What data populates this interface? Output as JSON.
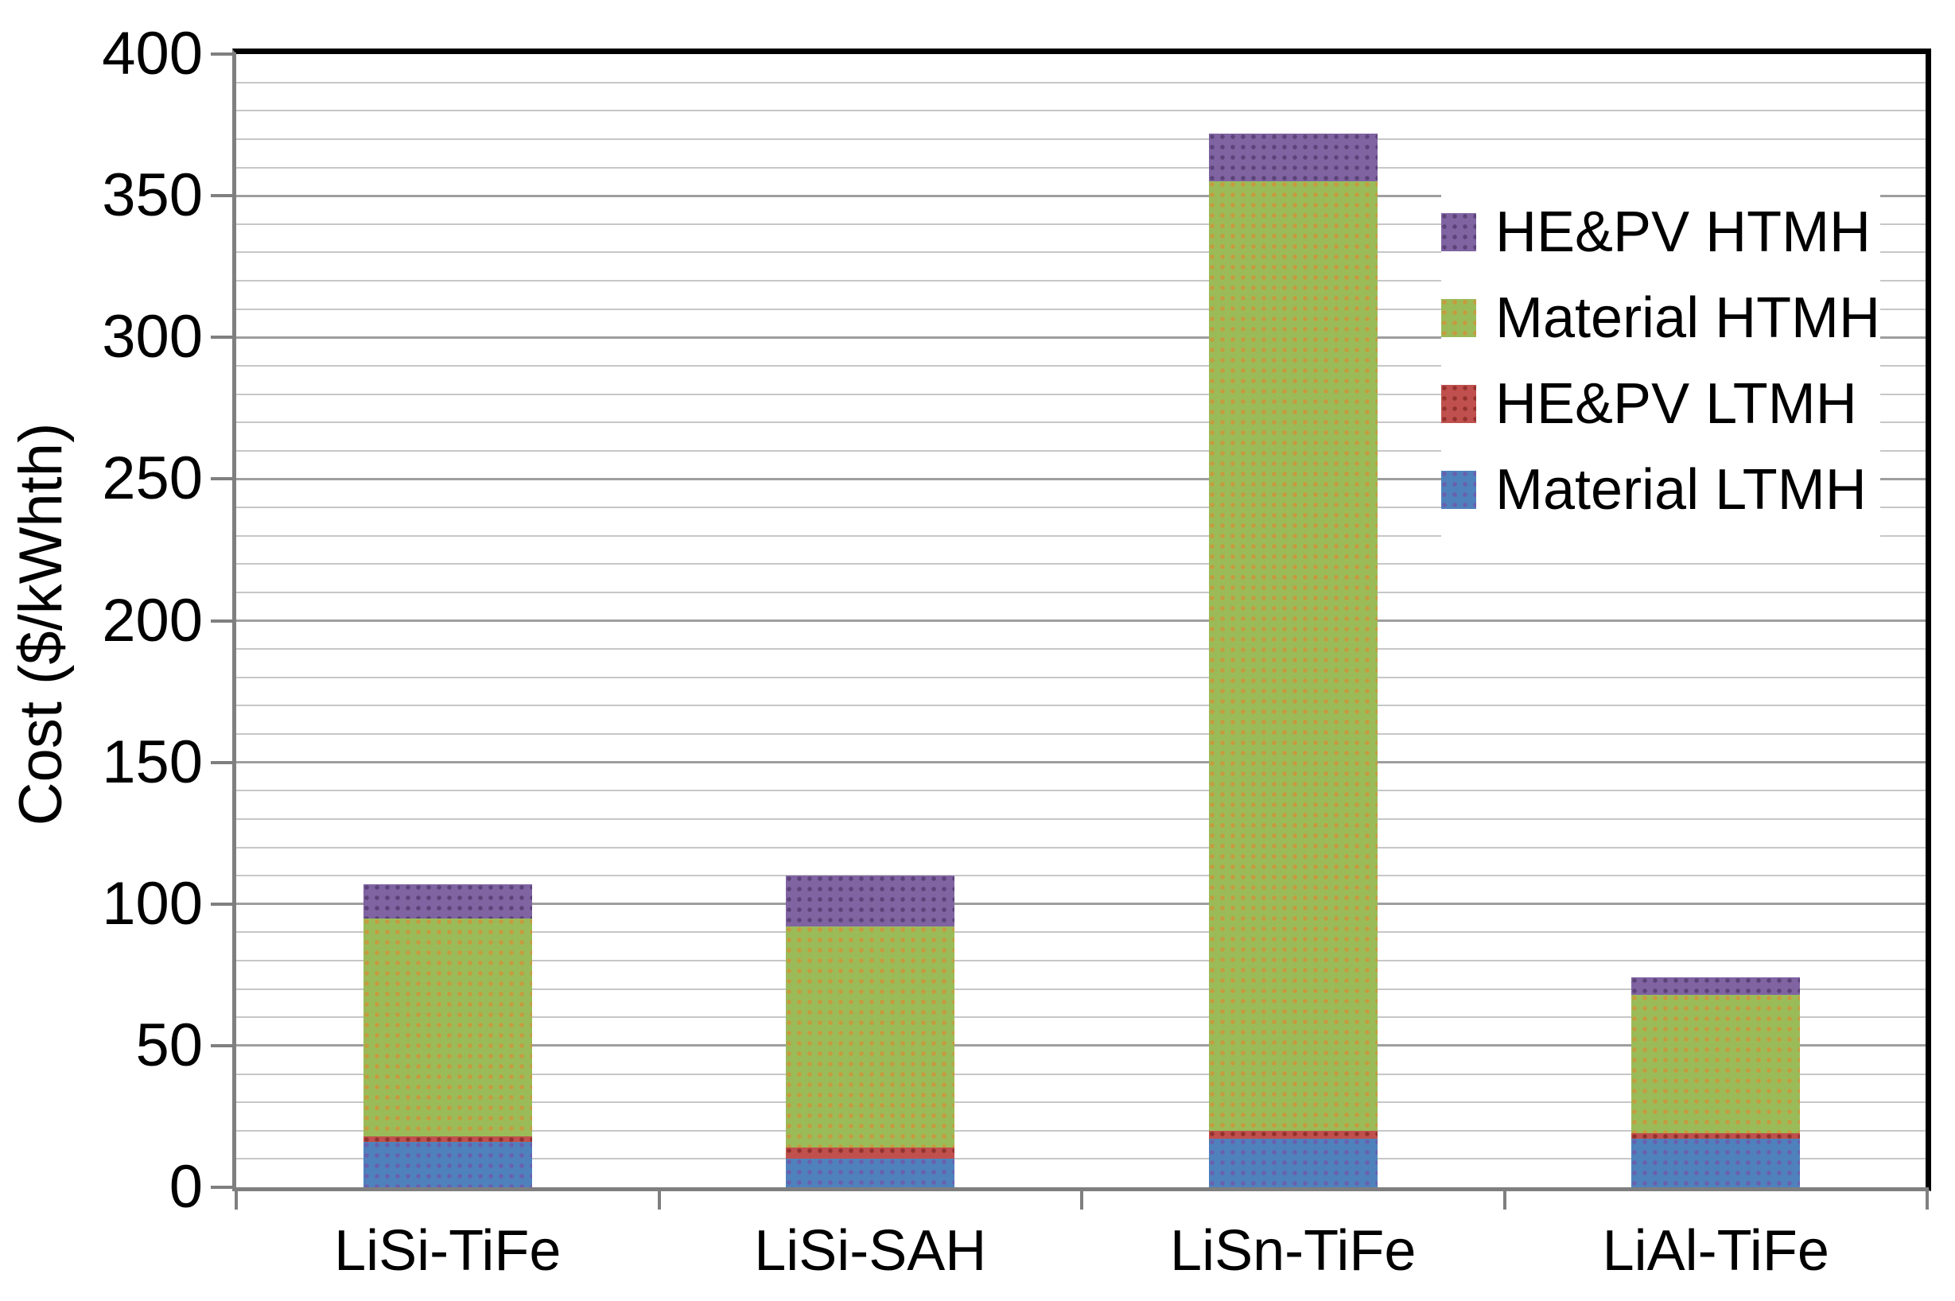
{
  "chart_data": {
    "type": "bar",
    "stacked": true,
    "title": "",
    "xlabel": "",
    "ylabel": "Cost ($/kWhth)",
    "ylim": [
      0,
      400
    ],
    "y_major_step": 50,
    "y_minor_step": 10,
    "y_tick_labels": [
      "0",
      "50",
      "100",
      "150",
      "200",
      "250",
      "300",
      "350",
      "400"
    ],
    "grid": true,
    "legend_position": "inside-top-right",
    "legend_order": [
      "HE&PV HTMH",
      "Material HTMH",
      "HE&PV LTMH",
      "Material LTMH"
    ],
    "categories": [
      "LiSi-TiFe",
      "LiSi-SAH",
      "LiSn-TiFe",
      "LiAl-TiFe"
    ],
    "series": [
      {
        "name": "Material LTMH",
        "color": "#4F81BD",
        "pattern_dot_color": "#6a5fae",
        "values": [
          16,
          10,
          17,
          17
        ]
      },
      {
        "name": "HE&PV LTMH",
        "color": "#C0504D",
        "pattern_dot_color": "#93322f",
        "values": [
          2,
          4,
          3,
          2
        ]
      },
      {
        "name": "Material HTMH",
        "color": "#9BBB59",
        "pattern_dot_color": "#c79a3e",
        "values": [
          77,
          78,
          335,
          49
        ]
      },
      {
        "name": "HE&PV HTMH",
        "color": "#8064A2",
        "pattern_dot_color": "#5c4379",
        "values": [
          12,
          18,
          17,
          6
        ]
      }
    ],
    "stack_totals": [
      107,
      110,
      372,
      74
    ]
  }
}
